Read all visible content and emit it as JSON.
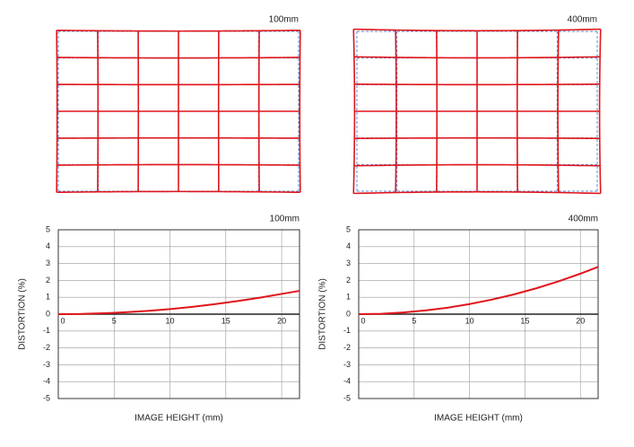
{
  "chart_data": [
    {
      "type": "grid",
      "title": "100mm"
    },
    {
      "type": "grid",
      "title": "400mm"
    },
    {
      "type": "line",
      "title": "100mm",
      "xlabel": "IMAGE HEIGHT (mm)",
      "ylabel": "DISTORTION (%)",
      "x": [
        0,
        2,
        4,
        6,
        8,
        10,
        12,
        14,
        16,
        18,
        20,
        21.6
      ],
      "series": [
        {
          "name": "100mm",
          "color": "#e0151b",
          "values": [
            0,
            0.01,
            0.05,
            0.11,
            0.19,
            0.3,
            0.43,
            0.59,
            0.77,
            0.97,
            1.2,
            1.38
          ]
        }
      ],
      "xlim": [
        0,
        21.6
      ],
      "ylim": [
        -5,
        5
      ],
      "xticks": [
        0,
        5,
        10,
        15,
        20
      ],
      "yticks": [
        -5,
        -4,
        -3,
        -2,
        -1,
        0,
        1,
        2,
        3,
        4,
        5
      ],
      "grid": true
    },
    {
      "type": "line",
      "title": "400mm",
      "xlabel": "IMAGE HEIGHT (mm)",
      "ylabel": "DISTORTION (%)",
      "x": [
        0,
        2,
        4,
        6,
        8,
        10,
        12,
        14,
        16,
        18,
        20,
        21.6
      ],
      "series": [
        {
          "name": "400mm",
          "color": "#e0151b",
          "values": [
            0,
            0.02,
            0.1,
            0.22,
            0.38,
            0.6,
            0.86,
            1.17,
            1.53,
            1.94,
            2.4,
            2.8
          ]
        }
      ],
      "xlim": [
        0,
        21.6
      ],
      "ylim": [
        -5,
        5
      ],
      "xticks": [
        0,
        5,
        10,
        15,
        20
      ],
      "yticks": [
        -5,
        -4,
        -3,
        -2,
        -1,
        0,
        1,
        2,
        3,
        4,
        5
      ],
      "grid": true
    }
  ]
}
